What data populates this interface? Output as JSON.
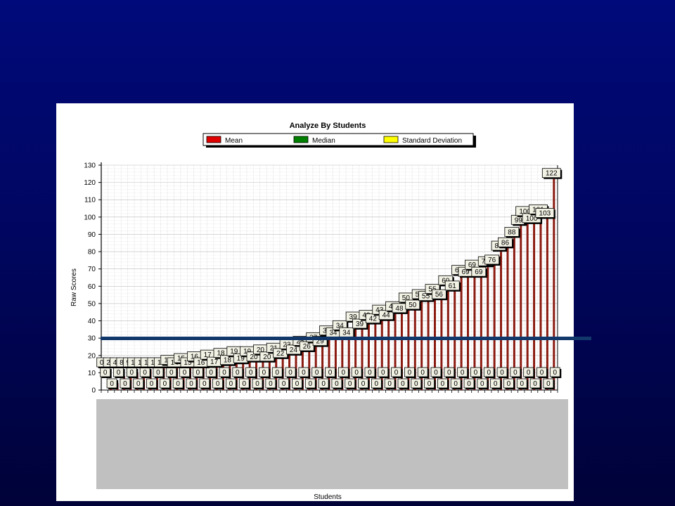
{
  "chart_data": {
    "type": "bar",
    "title": "Analyze By Students",
    "xlabel": "Students",
    "ylabel": "Raw Scores",
    "ylim": [
      0,
      130
    ],
    "yticks": [
      0,
      10,
      20,
      30,
      40,
      50,
      60,
      70,
      80,
      90,
      100,
      110,
      120,
      130
    ],
    "grid": true,
    "legend_position": "top",
    "legend": [
      {
        "name": "Mean",
        "color": "#e00000"
      },
      {
        "name": "Median",
        "color": "#008000"
      },
      {
        "name": "Standard Deviation",
        "color": "#ffff00"
      }
    ],
    "series": [
      {
        "name": "Mean",
        "color": "#8b1a10",
        "values": [
          0,
          2,
          4,
          8,
          9,
          10,
          11,
          12,
          12,
          14,
          14,
          14,
          15,
          15,
          16,
          16,
          17,
          17,
          18,
          18,
          19,
          19,
          19,
          20,
          20,
          20,
          21,
          22,
          23,
          24,
          25,
          26,
          27,
          29,
          31,
          34,
          34,
          34,
          39,
          39,
          40,
          42,
          43,
          44,
          45,
          48,
          50,
          50,
          52,
          55,
          55,
          56,
          60,
          61,
          66,
          69,
          69,
          69,
          71,
          76,
          80,
          86,
          88,
          99,
          100,
          100,
          101,
          103,
          122
        ]
      },
      {
        "name": "Standard Deviation",
        "color": "#000000",
        "values": [
          0,
          0,
          0,
          0,
          0,
          0,
          0,
          0,
          0,
          0,
          0,
          0,
          0,
          0,
          0,
          0,
          0,
          0,
          0,
          0,
          0,
          0,
          0,
          0,
          0,
          0,
          0,
          0,
          0,
          0,
          0,
          0,
          0,
          0,
          0,
          0,
          0,
          0,
          0,
          0,
          0,
          0,
          0,
          0,
          0,
          0,
          0,
          0,
          0,
          0,
          0,
          0,
          0,
          0,
          0,
          0,
          0,
          0,
          0,
          0,
          0,
          0,
          0,
          0,
          0,
          0,
          0,
          0,
          0
        ]
      },
      {
        "name": "Median",
        "color": "#008000",
        "values": [
          0,
          0,
          0,
          0,
          0,
          0,
          0,
          0,
          0,
          0,
          0,
          0,
          0,
          0,
          0,
          0,
          0,
          0,
          0,
          0,
          0,
          0,
          0,
          0,
          0,
          0,
          0,
          0,
          0,
          0,
          0,
          0,
          0,
          0,
          0,
          0,
          0,
          0,
          0,
          0,
          0,
          0,
          0,
          0,
          0,
          0,
          0,
          0,
          0,
          0,
          0,
          0,
          0,
          0,
          0,
          0,
          0,
          0,
          0,
          0,
          0,
          0,
          0,
          0,
          0,
          0,
          0,
          0,
          0
        ]
      }
    ]
  }
}
